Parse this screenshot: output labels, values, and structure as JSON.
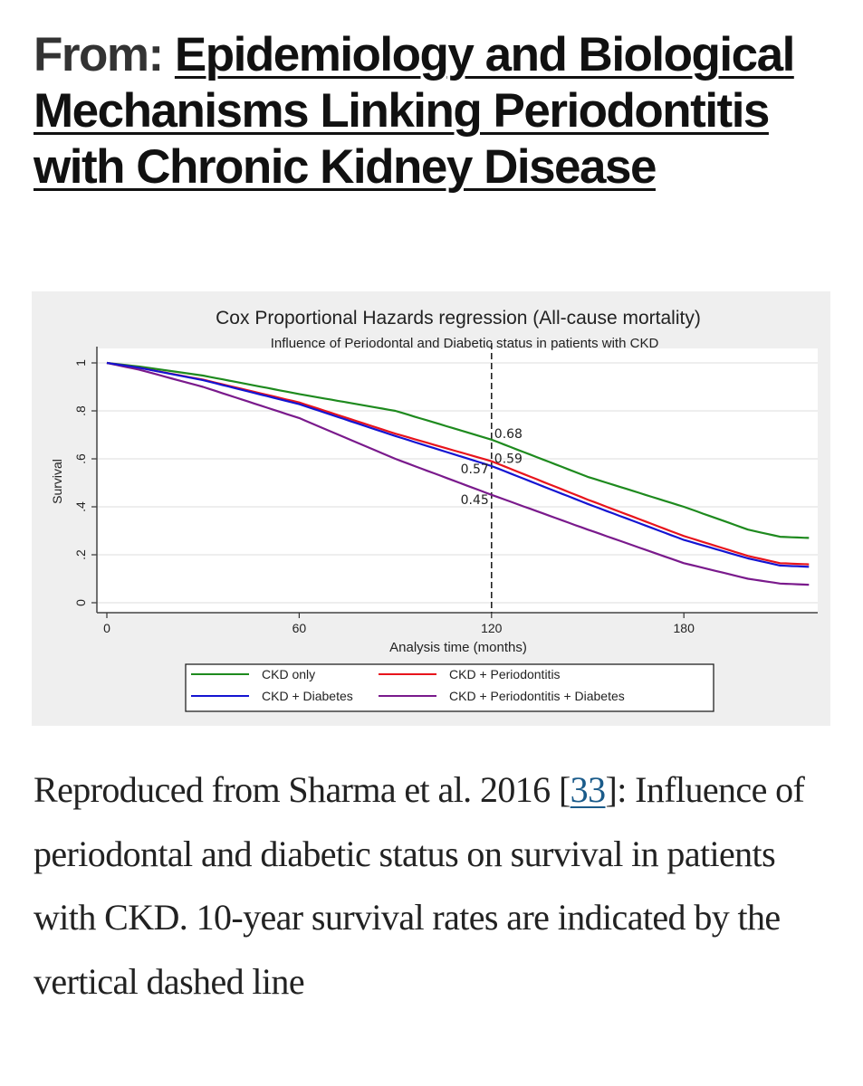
{
  "heading": {
    "prefix": "From:",
    "title": "Epidemiology and Biological Mechanisms Linking Periodontitis with Chronic Kidney Disease"
  },
  "caption": {
    "before_ref": "Reproduced from Sharma et al. 2016 [",
    "ref": "33",
    "after_ref": "]: Influence of periodontal and diabetic status on survival in patients with CKD. 10-year survival rates are indicated by the vertical dashed line"
  },
  "chart_data": {
    "type": "line",
    "title": "Cox Proportional Hazards regression (All-cause mortality)",
    "subtitle": "Influence of Periodontal and Diabetic status in patients with CKD",
    "xlabel": "Analysis time (months)",
    "ylabel": "Survival",
    "xlim": [
      0,
      219
    ],
    "ylim": [
      0,
      1
    ],
    "xticks": [
      0,
      60,
      120,
      180
    ],
    "xtick_labels": [
      "0",
      "60",
      "120",
      "180"
    ],
    "yticks": [
      0,
      0.2,
      0.4,
      0.6,
      0.8,
      1
    ],
    "ytick_labels": [
      "0",
      ".2",
      ".4",
      ".6",
      ".8",
      "1"
    ],
    "grid": true,
    "legend_position": "bottom",
    "reference_line": {
      "x": 120,
      "style": "dashed"
    },
    "annotations": [
      {
        "text": "0.68",
        "x": 120,
        "y": 0.68,
        "side": "right"
      },
      {
        "text": "0.59",
        "x": 120,
        "y": 0.59,
        "side": "right"
      },
      {
        "text": "0.57",
        "x": 120,
        "y": 0.57,
        "side": "left"
      },
      {
        "text": "0.45",
        "x": 120,
        "y": 0.45,
        "side": "left"
      }
    ],
    "x": [
      0,
      10,
      30,
      60,
      90,
      120,
      150,
      180,
      200,
      210,
      219
    ],
    "series": [
      {
        "name": "CKD only",
        "color": "#1e8a1e",
        "values": [
          1.0,
          0.985,
          0.947,
          0.87,
          0.8,
          0.68,
          0.525,
          0.4,
          0.305,
          0.275,
          0.27
        ]
      },
      {
        "name": "CKD + Periodontitis",
        "color": "#e8141c",
        "values": [
          1.0,
          0.98,
          0.93,
          0.835,
          0.705,
          0.59,
          0.43,
          0.278,
          0.195,
          0.165,
          0.16
        ]
      },
      {
        "name": "CKD + Diabetes",
        "color": "#1414d2",
        "values": [
          1.0,
          0.98,
          0.928,
          0.828,
          0.695,
          0.57,
          0.412,
          0.262,
          0.185,
          0.155,
          0.15
        ]
      },
      {
        "name": "CKD + Periodontitis + Diabetes",
        "color": "#7a1a8c",
        "values": [
          1.0,
          0.972,
          0.9,
          0.77,
          0.6,
          0.45,
          0.305,
          0.165,
          0.1,
          0.08,
          0.075
        ]
      }
    ],
    "legend_order": [
      0,
      1,
      2,
      3
    ]
  }
}
